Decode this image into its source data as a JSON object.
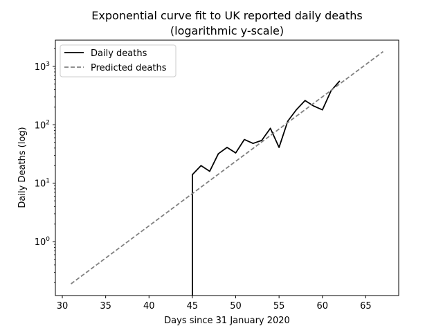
{
  "chart_data": {
    "type": "line",
    "title": "Exponential curve fit to UK reported daily deaths",
    "subtitle": "(logarithmic y-scale)",
    "xlabel": "Days since 31 January 2020",
    "ylabel": "Daily Deaths (log)",
    "xlim": [
      29.2,
      68.8
    ],
    "ylim": [
      0.12,
      2800
    ],
    "yscale": "log",
    "x_ticks": [
      30,
      35,
      40,
      45,
      50,
      55,
      60,
      65
    ],
    "y_ticks": [
      {
        "value": 1,
        "base": "10",
        "exp": "0"
      },
      {
        "value": 10,
        "base": "10",
        "exp": "1"
      },
      {
        "value": 100,
        "base": "10",
        "exp": "2"
      },
      {
        "value": 1000,
        "base": "10",
        "exp": "3"
      }
    ],
    "legend_position": "top-left",
    "grid": false,
    "series": [
      {
        "name": "Daily deaths",
        "color": "#000000",
        "style": "solid",
        "x": [
          45,
          45,
          46,
          47,
          48,
          49,
          50,
          51,
          52,
          53,
          54,
          55,
          56,
          57,
          58,
          59,
          60,
          61,
          62
        ],
        "y": [
          0.1,
          14,
          20,
          16,
          32,
          41,
          33,
          56,
          48,
          54,
          87,
          41,
          115,
          181,
          260,
          209,
          180,
          381,
          563
        ]
      },
      {
        "name": "Predicted deaths",
        "color": "#808080",
        "style": "dashed",
        "x": [
          31,
          67
        ],
        "y": [
          0.19,
          1780
        ]
      }
    ]
  }
}
